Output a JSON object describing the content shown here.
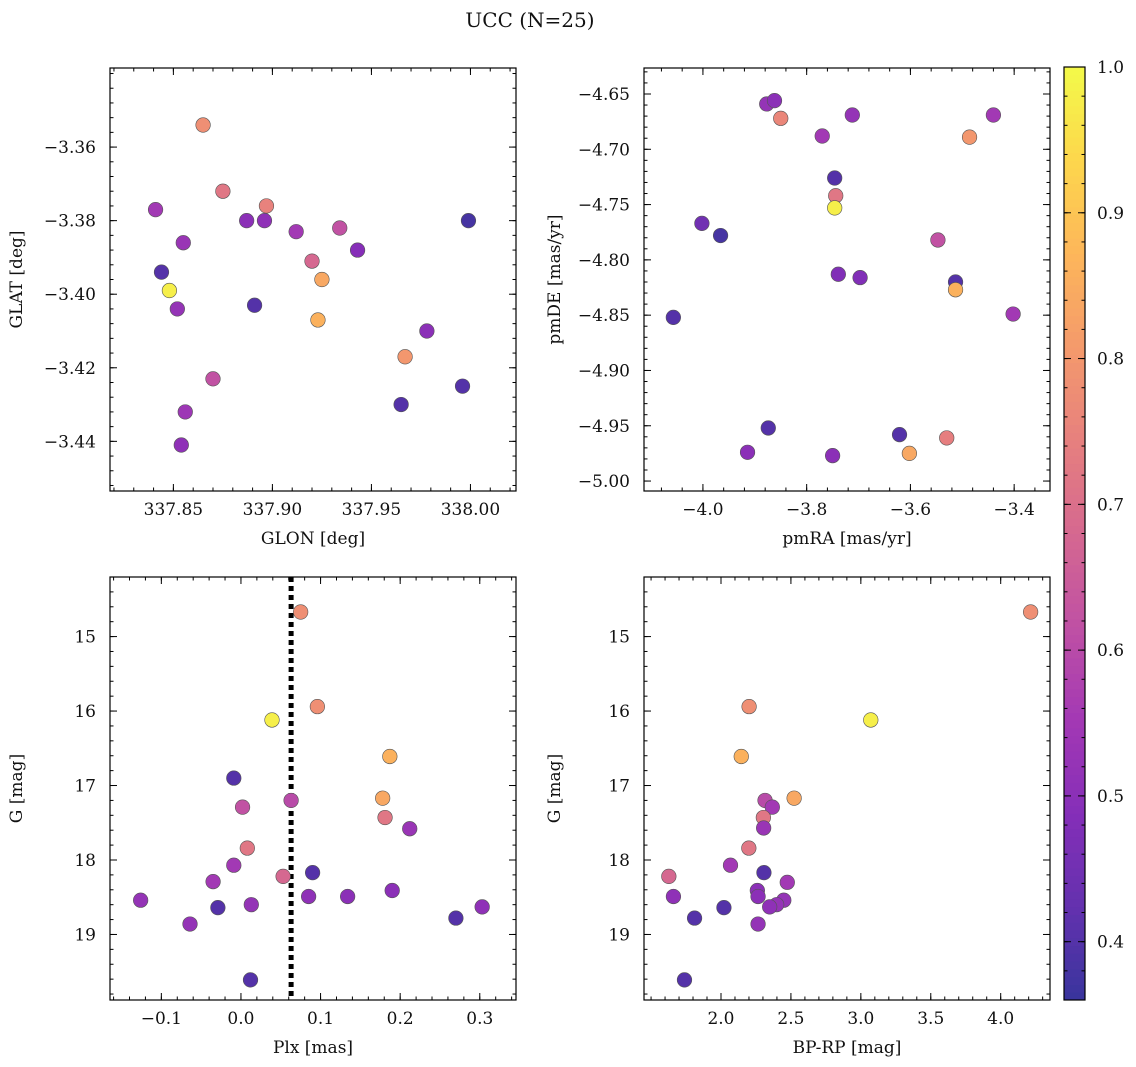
{
  "title": "UCC (N=25)",
  "colorbar": {
    "min": 0.36,
    "max": 1.0,
    "ticks": [
      0.4,
      0.5,
      0.6,
      0.7,
      0.8,
      0.9,
      1.0
    ],
    "tick_labels": [
      "0.4",
      "0.5",
      "0.6",
      "0.7",
      "0.8",
      "0.9",
      "1.0"
    ],
    "colormap": "plasma"
  },
  "chart_data": [
    {
      "type": "scatter",
      "xlabel": "GLON [deg]",
      "ylabel": "GLAT [deg]",
      "xlim": [
        337.818,
        338.023
      ],
      "ylim": [
        -3.4535,
        -3.3385
      ],
      "y_inverted": false,
      "xticks": [
        337.85,
        337.9,
        337.95,
        338.0
      ],
      "xtick_labels": [
        "337.85",
        "337.90",
        "337.95",
        "338.00"
      ],
      "yticks": [
        -3.36,
        -3.38,
        -3.4,
        -3.42,
        -3.44
      ],
      "ytick_labels": [
        "−3.36",
        "−3.38",
        "−3.40",
        "−3.42",
        "−3.44"
      ],
      "points": [
        {
          "x": 337.865,
          "y": -3.354,
          "c": 0.78
        },
        {
          "x": 337.875,
          "y": -3.372,
          "c": 0.72
        },
        {
          "x": 337.897,
          "y": -3.376,
          "c": 0.75
        },
        {
          "x": 337.841,
          "y": -3.377,
          "c": 0.55
        },
        {
          "x": 337.887,
          "y": -3.38,
          "c": 0.5
        },
        {
          "x": 337.896,
          "y": -3.38,
          "c": 0.51
        },
        {
          "x": 337.934,
          "y": -3.382,
          "c": 0.62
        },
        {
          "x": 337.912,
          "y": -3.383,
          "c": 0.55
        },
        {
          "x": 337.999,
          "y": -3.38,
          "c": 0.38
        },
        {
          "x": 337.855,
          "y": -3.386,
          "c": 0.53
        },
        {
          "x": 337.943,
          "y": -3.388,
          "c": 0.49
        },
        {
          "x": 337.92,
          "y": -3.391,
          "c": 0.68
        },
        {
          "x": 337.844,
          "y": -3.394,
          "c": 0.4
        },
        {
          "x": 337.925,
          "y": -3.396,
          "c": 0.84
        },
        {
          "x": 337.848,
          "y": -3.399,
          "c": 0.98
        },
        {
          "x": 337.891,
          "y": -3.403,
          "c": 0.4
        },
        {
          "x": 337.852,
          "y": -3.404,
          "c": 0.52
        },
        {
          "x": 337.923,
          "y": -3.407,
          "c": 0.86
        },
        {
          "x": 337.978,
          "y": -3.41,
          "c": 0.5
        },
        {
          "x": 337.967,
          "y": -3.417,
          "c": 0.8
        },
        {
          "x": 337.87,
          "y": -3.423,
          "c": 0.62
        },
        {
          "x": 337.996,
          "y": -3.425,
          "c": 0.4
        },
        {
          "x": 337.965,
          "y": -3.43,
          "c": 0.4
        },
        {
          "x": 337.856,
          "y": -3.432,
          "c": 0.54
        },
        {
          "x": 337.854,
          "y": -3.441,
          "c": 0.51
        }
      ]
    },
    {
      "type": "scatter",
      "xlabel": "pmRA [mas/yr]",
      "ylabel": "pmDE [mas/yr]",
      "xlim": [
        -4.1136,
        -3.3309
      ],
      "ylim": [
        -5.009,
        -4.6265
      ],
      "y_inverted": false,
      "xticks": [
        -4.0,
        -3.8,
        -3.6,
        -3.4
      ],
      "xtick_labels": [
        "−4.0",
        "−3.8",
        "−3.6",
        "−3.4"
      ],
      "yticks": [
        -4.65,
        -4.7,
        -4.75,
        -4.8,
        -4.85,
        -4.9,
        -4.95,
        -5.0
      ],
      "ytick_labels": [
        "−4.65",
        "−4.70",
        "−4.75",
        "−4.80",
        "−4.85",
        "−4.90",
        "−4.95",
        "−5.00"
      ],
      "points": [
        {
          "x": -3.877,
          "y": -4.659,
          "c": 0.52
        },
        {
          "x": -3.862,
          "y": -4.656,
          "c": 0.5
        },
        {
          "x": -3.85,
          "y": -4.672,
          "c": 0.76
        },
        {
          "x": -3.712,
          "y": -4.669,
          "c": 0.52
        },
        {
          "x": -3.44,
          "y": -4.669,
          "c": 0.55
        },
        {
          "x": -3.77,
          "y": -4.688,
          "c": 0.55
        },
        {
          "x": -3.486,
          "y": -4.689,
          "c": 0.8
        },
        {
          "x": -3.746,
          "y": -4.726,
          "c": 0.4
        },
        {
          "x": -3.744,
          "y": -4.742,
          "c": 0.72
        },
        {
          "x": -3.746,
          "y": -4.753,
          "c": 0.98
        },
        {
          "x": -4.002,
          "y": -4.767,
          "c": 0.45
        },
        {
          "x": -3.966,
          "y": -4.778,
          "c": 0.38
        },
        {
          "x": -3.547,
          "y": -4.782,
          "c": 0.62
        },
        {
          "x": -3.739,
          "y": -4.813,
          "c": 0.48
        },
        {
          "x": -3.697,
          "y": -4.816,
          "c": 0.48
        },
        {
          "x": -3.513,
          "y": -4.82,
          "c": 0.4
        },
        {
          "x": -3.513,
          "y": -4.827,
          "c": 0.86
        },
        {
          "x": -4.057,
          "y": -4.852,
          "c": 0.4
        },
        {
          "x": -3.402,
          "y": -4.849,
          "c": 0.55
        },
        {
          "x": -3.874,
          "y": -4.952,
          "c": 0.4
        },
        {
          "x": -3.621,
          "y": -4.958,
          "c": 0.4
        },
        {
          "x": -3.53,
          "y": -4.961,
          "c": 0.74
        },
        {
          "x": -3.914,
          "y": -4.974,
          "c": 0.5
        },
        {
          "x": -3.602,
          "y": -4.975,
          "c": 0.84
        },
        {
          "x": -3.75,
          "y": -4.977,
          "c": 0.5
        }
      ]
    },
    {
      "type": "scatter",
      "xlabel": "Plx [mas]",
      "ylabel": "G [mag]",
      "xlim": [
        -0.1645,
        0.3455
      ],
      "ylim": [
        19.88,
        14.2
      ],
      "y_inverted": true,
      "xticks": [
        -0.1,
        0.0,
        0.1,
        0.2,
        0.3
      ],
      "xtick_labels": [
        "−0.1",
        "0.0",
        "0.1",
        "0.2",
        "0.3"
      ],
      "yticks": [
        15,
        16,
        17,
        18,
        19
      ],
      "ytick_labels": [
        "15",
        "16",
        "17",
        "18",
        "19"
      ],
      "vline": {
        "x": 0.063,
        "style": "dotted"
      },
      "points": [
        {
          "x": 0.075,
          "y": 14.67,
          "c": 0.78
        },
        {
          "x": 0.096,
          "y": 15.94,
          "c": 0.78
        },
        {
          "x": 0.039,
          "y": 16.12,
          "c": 0.98
        },
        {
          "x": 0.187,
          "y": 16.61,
          "c": 0.86
        },
        {
          "x": -0.009,
          "y": 16.9,
          "c": 0.4
        },
        {
          "x": 0.178,
          "y": 17.17,
          "c": 0.84
        },
        {
          "x": 0.063,
          "y": 17.2,
          "c": 0.6
        },
        {
          "x": 0.002,
          "y": 17.29,
          "c": 0.62
        },
        {
          "x": 0.181,
          "y": 17.43,
          "c": 0.72
        },
        {
          "x": 0.212,
          "y": 17.58,
          "c": 0.53
        },
        {
          "x": 0.008,
          "y": 17.84,
          "c": 0.72
        },
        {
          "x": -0.009,
          "y": 18.07,
          "c": 0.55
        },
        {
          "x": 0.09,
          "y": 18.17,
          "c": 0.4
        },
        {
          "x": 0.053,
          "y": 18.22,
          "c": 0.68
        },
        {
          "x": -0.035,
          "y": 18.29,
          "c": 0.55
        },
        {
          "x": 0.19,
          "y": 18.41,
          "c": 0.5
        },
        {
          "x": 0.085,
          "y": 18.49,
          "c": 0.51
        },
        {
          "x": 0.134,
          "y": 18.49,
          "c": 0.5
        },
        {
          "x": -0.126,
          "y": 18.54,
          "c": 0.52
        },
        {
          "x": 0.013,
          "y": 18.6,
          "c": 0.52
        },
        {
          "x": -0.029,
          "y": 18.64,
          "c": 0.4
        },
        {
          "x": 0.303,
          "y": 18.63,
          "c": 0.51
        },
        {
          "x": 0.27,
          "y": 18.78,
          "c": 0.4
        },
        {
          "x": -0.064,
          "y": 18.86,
          "c": 0.52
        },
        {
          "x": 0.012,
          "y": 19.61,
          "c": 0.4
        }
      ]
    },
    {
      "type": "scatter",
      "xlabel": "BP-RP [mag]",
      "ylabel": "G [mag]",
      "xlim": [
        1.4495,
        4.3525
      ],
      "ylim": [
        19.88,
        14.2
      ],
      "y_inverted": true,
      "xticks": [
        2.0,
        2.5,
        3.0,
        3.5,
        4.0
      ],
      "xtick_labels": [
        "2.0",
        "2.5",
        "3.0",
        "3.5",
        "4.0"
      ],
      "yticks": [
        15,
        16,
        17,
        18,
        19
      ],
      "ytick_labels": [
        "15",
        "16",
        "17",
        "18",
        "19"
      ],
      "points": [
        {
          "x": 4.214,
          "y": 14.67,
          "c": 0.78
        },
        {
          "x": 2.201,
          "y": 15.94,
          "c": 0.78
        },
        {
          "x": 3.071,
          "y": 16.12,
          "c": 0.98
        },
        {
          "x": 2.145,
          "y": 16.61,
          "c": 0.86
        },
        {
          "x": 2.523,
          "y": 17.17,
          "c": 0.84
        },
        {
          "x": 2.315,
          "y": 17.2,
          "c": 0.6
        },
        {
          "x": 2.367,
          "y": 17.29,
          "c": 0.55
        },
        {
          "x": 2.303,
          "y": 17.43,
          "c": 0.72
        },
        {
          "x": 2.305,
          "y": 17.57,
          "c": 0.53
        },
        {
          "x": 2.199,
          "y": 17.84,
          "c": 0.72
        },
        {
          "x": 2.068,
          "y": 18.07,
          "c": 0.55
        },
        {
          "x": 2.307,
          "y": 18.17,
          "c": 0.4
        },
        {
          "x": 1.627,
          "y": 18.22,
          "c": 0.68
        },
        {
          "x": 2.474,
          "y": 18.3,
          "c": 0.55
        },
        {
          "x": 2.26,
          "y": 18.41,
          "c": 0.5
        },
        {
          "x": 1.66,
          "y": 18.49,
          "c": 0.51
        },
        {
          "x": 2.265,
          "y": 18.49,
          "c": 0.5
        },
        {
          "x": 2.449,
          "y": 18.54,
          "c": 0.52
        },
        {
          "x": 2.398,
          "y": 18.6,
          "c": 0.52
        },
        {
          "x": 2.348,
          "y": 18.63,
          "c": 0.51
        },
        {
          "x": 2.021,
          "y": 18.64,
          "c": 0.4
        },
        {
          "x": 1.811,
          "y": 18.78,
          "c": 0.4
        },
        {
          "x": 2.265,
          "y": 18.86,
          "c": 0.52
        },
        {
          "x": 1.739,
          "y": 19.61,
          "c": 0.4
        }
      ]
    }
  ]
}
